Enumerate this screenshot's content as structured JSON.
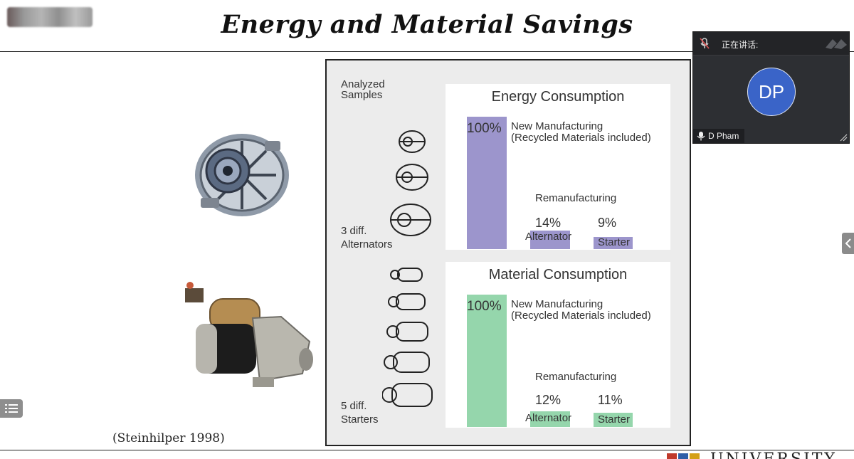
{
  "slide": {
    "title": "Energy and Material Savings",
    "citation": "(Steinhilper 1998)",
    "analyzed_samples": [
      "Analyzed",
      "Samples"
    ],
    "alternators_note": [
      "3 diff.",
      "Alternators"
    ],
    "starters_note": [
      "5 diff.",
      "Starters"
    ]
  },
  "chart_data": [
    {
      "type": "bar",
      "title": "Energy Consumption",
      "categories": [
        "New Manufacturing",
        "Alternator",
        "Starter"
      ],
      "values": [
        100,
        14,
        9
      ],
      "value_labels": [
        "100%",
        "14%",
        "9%"
      ],
      "new_label_line1": "New Manufacturing",
      "new_label_line2": "(Recycled Materials included)",
      "group_label": "Remanufacturing",
      "color": "#9c95cc"
    },
    {
      "type": "bar",
      "title": "Material Consumption",
      "categories": [
        "New Manufacturing",
        "Alternator",
        "Starter"
      ],
      "values": [
        100,
        12,
        11
      ],
      "value_labels": [
        "100%",
        "12%",
        "11%"
      ],
      "new_label_line1": "New Manufacturing",
      "new_label_line2": "(Recycled Materials included)",
      "group_label": "Remanufacturing",
      "color": "#95d6ac"
    }
  ],
  "video": {
    "speaking_label": "正在讲话:",
    "avatar_initials": "DP",
    "participant_name": "D Pham",
    "avatar_color": "#3a64c8"
  },
  "footer": {
    "university_text": "UNIVERSITY OF"
  },
  "icons": {
    "muted": "mic-off-icon",
    "mic": "mic-icon",
    "collapse": "chevron-left-icon",
    "list": "list-icon"
  }
}
